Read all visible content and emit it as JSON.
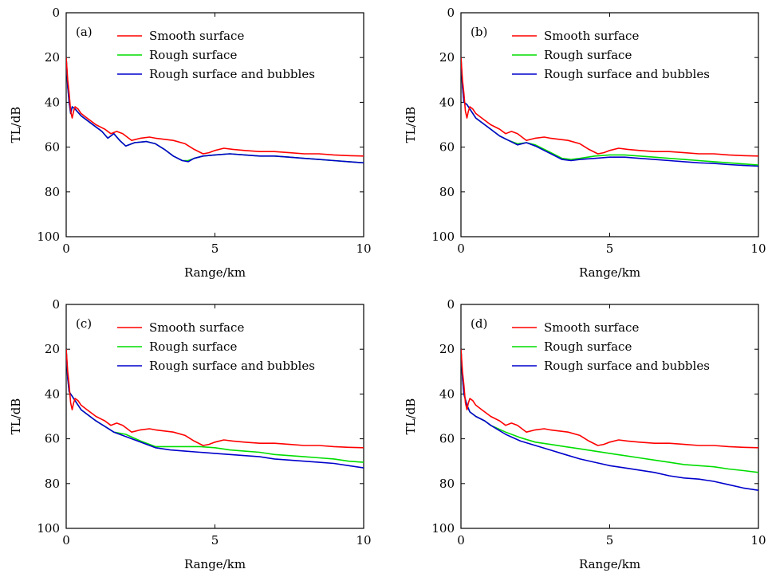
{
  "figure": {
    "xlabel": "Range/km",
    "ylabel": "TL/dB",
    "x_ticks": [
      "0",
      "5",
      "10"
    ],
    "y_ticks": [
      "0",
      "20",
      "40",
      "60",
      "80",
      "100"
    ],
    "legend": [
      "Smooth surface",
      "Rough surface",
      "Rough surface and bubbles"
    ],
    "colors": {
      "smooth": "#ff0000",
      "rough": "#00dd00",
      "bubbles": "#0000cc"
    }
  },
  "chart_data": [
    {
      "type": "line",
      "panel_label": "(a)",
      "xlabel": "Range/km",
      "ylabel": "TL/dB",
      "xlim": [
        0,
        10
      ],
      "ylim": [
        0,
        100
      ],
      "y_inverted": true,
      "legend_position": "top-right",
      "series": [
        {
          "name": "Smooth surface",
          "color": "#ff0000",
          "x": [
            0,
            0.05,
            0.1,
            0.15,
            0.2,
            0.25,
            0.3,
            0.4,
            0.5,
            0.7,
            1.0,
            1.3,
            1.5,
            1.7,
            1.9,
            2.2,
            2.5,
            2.8,
            3.0,
            3.3,
            3.6,
            4.0,
            4.3,
            4.6,
            4.8,
            5.0,
            5.3,
            5.6,
            6.0,
            6.5,
            7.0,
            7.5,
            8.0,
            8.5,
            9.0,
            9.5,
            10.0
          ],
          "y": [
            20,
            30,
            36,
            44,
            47,
            44,
            42,
            43,
            45,
            47,
            50,
            52,
            54,
            53,
            54,
            57,
            56,
            55.5,
            56,
            56.5,
            57,
            58.5,
            61,
            63,
            62.5,
            61.5,
            60.5,
            61,
            61.5,
            62,
            62,
            62.5,
            63,
            63,
            63.5,
            63.8,
            64
          ]
        },
        {
          "name": "Rough surface",
          "color": "#00dd00",
          "x": [
            0,
            0.05,
            0.1,
            0.15,
            0.2,
            0.3,
            0.5,
            0.8,
            1.0,
            1.2,
            1.4,
            1.6,
            1.8,
            2.0,
            2.3,
            2.7,
            3.0,
            3.3,
            3.6,
            3.9,
            4.1,
            4.3,
            4.6,
            5.0,
            5.5,
            6.0,
            6.5,
            7.0,
            7.5,
            8.0,
            8.5,
            9.0,
            9.5,
            10.0
          ],
          "y": [
            20,
            33,
            40,
            45,
            42,
            43,
            46,
            49,
            51,
            53,
            56,
            54,
            57,
            59.5,
            58,
            57.5,
            58.5,
            61,
            64,
            66,
            66,
            65,
            64,
            63.5,
            63,
            63.5,
            64,
            64,
            64.5,
            65,
            65.5,
            66,
            66.5,
            67
          ]
        },
        {
          "name": "Rough surface and bubbles",
          "color": "#0000cc",
          "x": [
            0,
            0.05,
            0.1,
            0.15,
            0.2,
            0.3,
            0.5,
            0.8,
            1.0,
            1.2,
            1.4,
            1.6,
            1.8,
            2.0,
            2.3,
            2.7,
            3.0,
            3.3,
            3.6,
            3.9,
            4.1,
            4.3,
            4.6,
            5.0,
            5.5,
            6.0,
            6.5,
            7.0,
            7.5,
            8.0,
            8.5,
            9.0,
            9.5,
            10.0
          ],
          "y": [
            20,
            33,
            40,
            45,
            42,
            43,
            46,
            49,
            51,
            53,
            56,
            54,
            57,
            59.5,
            58,
            57.5,
            58.5,
            61,
            64,
            66,
            66.5,
            65,
            64,
            63.5,
            63,
            63.5,
            64,
            64,
            64.5,
            65,
            65.5,
            66,
            66.5,
            67
          ]
        }
      ]
    },
    {
      "type": "line",
      "panel_label": "(b)",
      "xlabel": "Range/km",
      "ylabel": "TL/dB",
      "xlim": [
        0,
        10
      ],
      "ylim": [
        0,
        100
      ],
      "y_inverted": true,
      "legend_position": "top-right",
      "series": [
        {
          "name": "Smooth surface",
          "color": "#ff0000",
          "x": [
            0,
            0.05,
            0.1,
            0.15,
            0.2,
            0.25,
            0.3,
            0.4,
            0.5,
            0.7,
            1.0,
            1.3,
            1.5,
            1.7,
            1.9,
            2.2,
            2.5,
            2.8,
            3.0,
            3.3,
            3.6,
            4.0,
            4.3,
            4.6,
            4.8,
            5.0,
            5.3,
            5.6,
            6.0,
            6.5,
            7.0,
            7.5,
            8.0,
            8.5,
            9.0,
            9.5,
            10.0
          ],
          "y": [
            20,
            30,
            36,
            44,
            47,
            44,
            42,
            43,
            45,
            47,
            50,
            52,
            54,
            53,
            54,
            57,
            56,
            55.5,
            56,
            56.5,
            57,
            58.5,
            61,
            63,
            62.5,
            61.5,
            60.5,
            61,
            61.5,
            62,
            62,
            62.5,
            63,
            63,
            63.5,
            63.8,
            64
          ]
        },
        {
          "name": "Rough surface",
          "color": "#00dd00",
          "x": [
            0,
            0.05,
            0.1,
            0.2,
            0.3,
            0.5,
            0.8,
            1.0,
            1.3,
            1.6,
            1.9,
            2.2,
            2.5,
            2.8,
            3.1,
            3.4,
            3.7,
            4.0,
            4.5,
            5.0,
            5.5,
            6.0,
            6.5,
            7.0,
            7.5,
            8.0,
            8.5,
            9.0,
            9.5,
            10.0
          ],
          "y": [
            20,
            33,
            40,
            41,
            43,
            47,
            50,
            52,
            55,
            57,
            58.5,
            58,
            59,
            61,
            63,
            65,
            65.5,
            65,
            64,
            63.5,
            63.5,
            64,
            64.5,
            65,
            65.5,
            66,
            66.5,
            67,
            67.5,
            68
          ]
        },
        {
          "name": "Rough surface and bubbles",
          "color": "#0000cc",
          "x": [
            0,
            0.05,
            0.1,
            0.2,
            0.3,
            0.5,
            0.8,
            1.0,
            1.3,
            1.6,
            1.9,
            2.2,
            2.5,
            2.8,
            3.1,
            3.4,
            3.7,
            4.0,
            4.5,
            5.0,
            5.5,
            6.0,
            6.5,
            7.0,
            7.5,
            8.0,
            8.5,
            9.0,
            9.5,
            10.0
          ],
          "y": [
            20,
            33,
            40,
            41,
            43,
            47,
            50,
            52,
            55,
            57,
            59,
            58,
            59.5,
            61.5,
            63.5,
            65.5,
            66,
            65.5,
            65,
            64.5,
            64.5,
            65,
            65.5,
            66,
            66.5,
            67,
            67.3,
            67.8,
            68.2,
            68.5
          ]
        }
      ]
    },
    {
      "type": "line",
      "panel_label": "(c)",
      "xlabel": "Range/km",
      "ylabel": "TL/dB",
      "xlim": [
        0,
        10
      ],
      "ylim": [
        0,
        100
      ],
      "y_inverted": true,
      "legend_position": "top-right",
      "series": [
        {
          "name": "Smooth surface",
          "color": "#ff0000",
          "x": [
            0,
            0.05,
            0.1,
            0.15,
            0.2,
            0.25,
            0.3,
            0.4,
            0.5,
            0.7,
            1.0,
            1.3,
            1.5,
            1.7,
            1.9,
            2.2,
            2.5,
            2.8,
            3.0,
            3.3,
            3.6,
            4.0,
            4.3,
            4.6,
            4.8,
            5.0,
            5.3,
            5.6,
            6.0,
            6.5,
            7.0,
            7.5,
            8.0,
            8.5,
            9.0,
            9.5,
            10.0
          ],
          "y": [
            20,
            30,
            36,
            44,
            47,
            44,
            42,
            43,
            45,
            47,
            50,
            52,
            54,
            53,
            54,
            57,
            56,
            55.5,
            56,
            56.5,
            57,
            58.5,
            61,
            63,
            62.5,
            61.5,
            60.5,
            61,
            61.5,
            62,
            62,
            62.5,
            63,
            63,
            63.5,
            63.8,
            64
          ]
        },
        {
          "name": "Rough surface",
          "color": "#00dd00",
          "x": [
            0,
            0.05,
            0.1,
            0.2,
            0.3,
            0.5,
            0.8,
            1.0,
            1.3,
            1.6,
            2.0,
            2.5,
            3.0,
            3.5,
            4.0,
            4.5,
            5.0,
            5.5,
            6.0,
            6.5,
            7.0,
            7.5,
            8.0,
            8.5,
            9.0,
            9.5,
            10.0
          ],
          "y": [
            20,
            33,
            39,
            41,
            43,
            47,
            50,
            52,
            54.5,
            57,
            58,
            61,
            63.5,
            63.5,
            63.5,
            63.5,
            64,
            65,
            65.5,
            66,
            67,
            67.5,
            68,
            68.5,
            69,
            70,
            70.5
          ]
        },
        {
          "name": "Rough surface and bubbles",
          "color": "#0000cc",
          "x": [
            0,
            0.05,
            0.1,
            0.2,
            0.3,
            0.5,
            0.8,
            1.0,
            1.3,
            1.6,
            2.0,
            2.5,
            3.0,
            3.5,
            4.0,
            4.5,
            5.0,
            5.5,
            6.0,
            6.5,
            7.0,
            7.5,
            8.0,
            8.5,
            9.0,
            9.5,
            10.0
          ],
          "y": [
            20,
            33,
            39,
            41,
            43,
            47,
            50,
            52,
            54.5,
            57,
            59,
            61.5,
            64,
            65,
            65.5,
            66,
            66.5,
            67,
            67.5,
            68,
            69,
            69.5,
            70,
            70.5,
            71,
            72,
            73
          ]
        }
      ]
    },
    {
      "type": "line",
      "panel_label": "(d)",
      "xlabel": "Range/km",
      "ylabel": "TL/dB",
      "xlim": [
        0,
        10
      ],
      "ylim": [
        0,
        100
      ],
      "y_inverted": true,
      "legend_position": "top-right",
      "series": [
        {
          "name": "Smooth surface",
          "color": "#ff0000",
          "x": [
            0,
            0.05,
            0.1,
            0.15,
            0.2,
            0.25,
            0.3,
            0.4,
            0.5,
            0.7,
            1.0,
            1.3,
            1.5,
            1.7,
            1.9,
            2.2,
            2.5,
            2.8,
            3.0,
            3.3,
            3.6,
            4.0,
            4.3,
            4.6,
            4.8,
            5.0,
            5.3,
            5.6,
            6.0,
            6.5,
            7.0,
            7.5,
            8.0,
            8.5,
            9.0,
            9.5,
            10.0
          ],
          "y": [
            20,
            30,
            36,
            44,
            47,
            44,
            42,
            43,
            45,
            47,
            50,
            52,
            54,
            53,
            54,
            57,
            56,
            55.5,
            56,
            56.5,
            57,
            58.5,
            61,
            63,
            62.5,
            61.5,
            60.5,
            61,
            61.5,
            62,
            62,
            62.5,
            63,
            63,
            63.5,
            63.8,
            64
          ]
        },
        {
          "name": "Rough surface",
          "color": "#00dd00",
          "x": [
            0,
            0.05,
            0.1,
            0.2,
            0.3,
            0.5,
            0.8,
            1.0,
            1.5,
            2.0,
            2.5,
            3.0,
            3.5,
            4.0,
            4.5,
            5.0,
            5.5,
            6.0,
            6.5,
            7.0,
            7.5,
            8.0,
            8.5,
            9.0,
            9.5,
            10.0
          ],
          "y": [
            20,
            33,
            40,
            45,
            48,
            50,
            52,
            54,
            57,
            59.5,
            61.5,
            62.5,
            63.5,
            64.5,
            65.5,
            66.5,
            67.5,
            68.5,
            69.5,
            70.5,
            71.5,
            72,
            72.5,
            73.5,
            74.2,
            75
          ]
        },
        {
          "name": "Rough surface and bubbles",
          "color": "#0000cc",
          "x": [
            0,
            0.05,
            0.1,
            0.2,
            0.3,
            0.5,
            0.8,
            1.0,
            1.5,
            2.0,
            2.5,
            3.0,
            3.5,
            4.0,
            4.5,
            5.0,
            5.5,
            6.0,
            6.5,
            7.0,
            7.5,
            8.0,
            8.5,
            9.0,
            9.5,
            10.0
          ],
          "y": [
            20,
            33,
            40,
            45,
            48,
            50,
            52,
            54,
            58,
            61,
            63,
            65,
            67,
            69,
            70.5,
            72,
            73,
            74,
            75,
            76.5,
            77.5,
            78,
            79,
            80.5,
            82,
            83
          ]
        }
      ]
    }
  ]
}
